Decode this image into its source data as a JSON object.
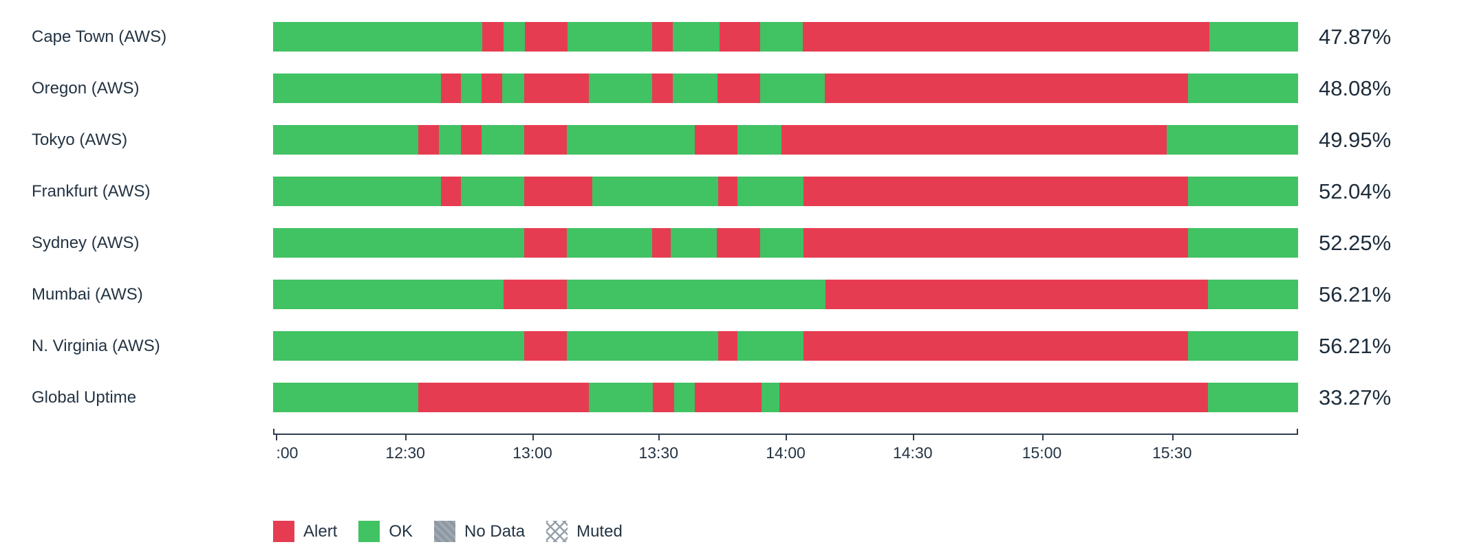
{
  "chart_data": {
    "type": "bar",
    "variant": "slo-status-timeline",
    "orientation": "horizontal",
    "stacked": true,
    "legend_position": "bottom-left",
    "colors": {
      "alert": "#e63c52",
      "ok": "#41c263",
      "no_data": "#8d97a1",
      "axis": "#2e3d4d",
      "label_text": "#243443",
      "value_text": "#1d2c3b"
    },
    "x_axis": {
      "start": "12:00",
      "end": "16:00",
      "ticks": [
        {
          "label": ":00",
          "pos_pct": 0.3
        },
        {
          "label": "12:30",
          "pos_pct": 12.9
        },
        {
          "label": "13:00",
          "pos_pct": 25.3
        },
        {
          "label": "13:30",
          "pos_pct": 37.6
        },
        {
          "label": "14:00",
          "pos_pct": 50.0
        },
        {
          "label": "14:30",
          "pos_pct": 62.4
        },
        {
          "label": "15:00",
          "pos_pct": 75.0
        },
        {
          "label": "15:30",
          "pos_pct": 87.7
        }
      ]
    },
    "rows": [
      {
        "label": "Cape Town (AWS)",
        "value": "47.87%",
        "segments": [
          {
            "status": "ok",
            "width_pct": 20.42
          },
          {
            "status": "alert",
            "width_pct": 2.08
          },
          {
            "status": "ok",
            "width_pct": 2.05
          },
          {
            "status": "alert",
            "width_pct": 4.19
          },
          {
            "status": "ok",
            "width_pct": 8.24
          },
          {
            "status": "alert",
            "width_pct": 1.99
          },
          {
            "status": "ok",
            "width_pct": 4.57
          },
          {
            "status": "alert",
            "width_pct": 3.99
          },
          {
            "status": "ok",
            "width_pct": 4.18
          },
          {
            "status": "alert",
            "width_pct": 39.61
          },
          {
            "status": "ok",
            "width_pct": 8.68
          }
        ]
      },
      {
        "label": "Oregon (AWS)",
        "value": "48.08%",
        "segments": [
          {
            "status": "ok",
            "width_pct": 16.4
          },
          {
            "status": "alert",
            "width_pct": 1.9
          },
          {
            "status": "ok",
            "width_pct": 2.05
          },
          {
            "status": "alert",
            "width_pct": 1.99
          },
          {
            "status": "ok",
            "width_pct": 2.19
          },
          {
            "status": "alert",
            "width_pct": 6.27
          },
          {
            "status": "ok",
            "width_pct": 6.18
          },
          {
            "status": "alert",
            "width_pct": 1.99
          },
          {
            "status": "ok",
            "width_pct": 4.42
          },
          {
            "status": "alert",
            "width_pct": 4.14
          },
          {
            "status": "ok",
            "width_pct": 6.32
          },
          {
            "status": "alert",
            "width_pct": 35.39
          },
          {
            "status": "ok",
            "width_pct": 10.76
          }
        ]
      },
      {
        "label": "Tokyo (AWS)",
        "value": "49.95%",
        "segments": [
          {
            "status": "ok",
            "width_pct": 14.17
          },
          {
            "status": "alert",
            "width_pct": 1.99
          },
          {
            "status": "ok",
            "width_pct": 2.13
          },
          {
            "status": "alert",
            "width_pct": 2.05
          },
          {
            "status": "ok",
            "width_pct": 4.18
          },
          {
            "status": "alert",
            "width_pct": 4.14
          },
          {
            "status": "ok",
            "width_pct": 12.49
          },
          {
            "status": "alert",
            "width_pct": 4.14
          },
          {
            "status": "ok",
            "width_pct": 4.28
          },
          {
            "status": "alert",
            "width_pct": 37.61
          },
          {
            "status": "ok",
            "width_pct": 12.82
          }
        ]
      },
      {
        "label": "Frankfurt (AWS)",
        "value": "52.04%",
        "segments": [
          {
            "status": "ok",
            "width_pct": 16.4
          },
          {
            "status": "alert",
            "width_pct": 1.9
          },
          {
            "status": "ok",
            "width_pct": 6.23
          },
          {
            "status": "alert",
            "width_pct": 6.6
          },
          {
            "status": "ok",
            "width_pct": 12.27
          },
          {
            "status": "alert",
            "width_pct": 1.9
          },
          {
            "status": "ok",
            "width_pct": 6.42
          },
          {
            "status": "alert",
            "width_pct": 37.53
          },
          {
            "status": "ok",
            "width_pct": 10.75
          }
        ]
      },
      {
        "label": "Sydney (AWS)",
        "value": "52.25%",
        "segments": [
          {
            "status": "ok",
            "width_pct": 24.53
          },
          {
            "status": "alert",
            "width_pct": 4.14
          },
          {
            "status": "ok",
            "width_pct": 8.32
          },
          {
            "status": "alert",
            "width_pct": 1.8
          },
          {
            "status": "ok",
            "width_pct": 4.47
          },
          {
            "status": "alert",
            "width_pct": 4.28
          },
          {
            "status": "ok",
            "width_pct": 4.18
          },
          {
            "status": "alert",
            "width_pct": 37.53
          },
          {
            "status": "ok",
            "width_pct": 10.75
          }
        ]
      },
      {
        "label": "Mumbai (AWS)",
        "value": "56.21%",
        "segments": [
          {
            "status": "ok",
            "width_pct": 22.49
          },
          {
            "status": "alert",
            "width_pct": 6.18
          },
          {
            "status": "ok",
            "width_pct": 25.19
          },
          {
            "status": "alert",
            "width_pct": 37.36
          },
          {
            "status": "ok",
            "width_pct": 8.78
          }
        ]
      },
      {
        "label": "N. Virginia (AWS)",
        "value": "56.21%",
        "segments": [
          {
            "status": "ok",
            "width_pct": 24.53
          },
          {
            "status": "alert",
            "width_pct": 4.14
          },
          {
            "status": "ok",
            "width_pct": 14.73
          },
          {
            "status": "alert",
            "width_pct": 1.9
          },
          {
            "status": "ok",
            "width_pct": 6.42
          },
          {
            "status": "alert",
            "width_pct": 37.53
          },
          {
            "status": "ok",
            "width_pct": 10.75
          }
        ]
      },
      {
        "label": "Global Uptime",
        "value": "33.27%",
        "segments": [
          {
            "status": "ok",
            "width_pct": 14.17
          },
          {
            "status": "alert",
            "width_pct": 16.63
          },
          {
            "status": "ok",
            "width_pct": 6.28
          },
          {
            "status": "alert",
            "width_pct": 2.04
          },
          {
            "status": "ok",
            "width_pct": 2.04
          },
          {
            "status": "alert",
            "width_pct": 6.51
          },
          {
            "status": "ok",
            "width_pct": 1.76
          },
          {
            "status": "alert",
            "width_pct": 41.79
          },
          {
            "status": "ok",
            "width_pct": 8.78
          }
        ]
      }
    ],
    "legend": [
      {
        "id": "alert",
        "label": "Alert",
        "swatch": "solid",
        "color": "#e63c52"
      },
      {
        "id": "ok",
        "label": "OK",
        "swatch": "solid",
        "color": "#41c263"
      },
      {
        "id": "no_data",
        "label": "No Data",
        "swatch": "textured",
        "color": "#8d97a1"
      },
      {
        "id": "muted",
        "label": "Muted",
        "swatch": "crosshatch",
        "color": "#94a0aa"
      }
    ]
  }
}
